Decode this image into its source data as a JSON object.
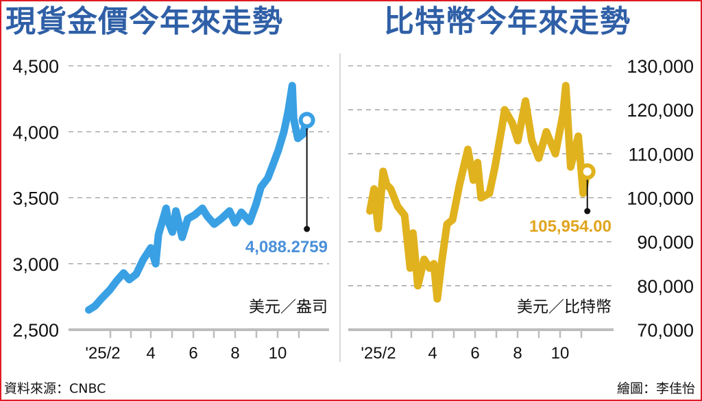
{
  "titles": {
    "gold": "現貨金價今年來走勢",
    "bitcoin": "比特幣今年來走勢"
  },
  "footer": {
    "source": "資料來源：CNBC",
    "credit": "繪圖：李佳怡"
  },
  "colors": {
    "title": "#2f5fa6",
    "gold_line": "#3aa0e4",
    "gold_label": "#4a90d9",
    "btc_line": "#e0b21e",
    "btc_label": "#e0a41e",
    "frame": "#e01b24",
    "grid": "#999999",
    "axis": "#bbbbbb"
  },
  "chart_data": [
    {
      "type": "line",
      "title": "現貨金價今年來走勢",
      "unit_label": "美元／盎司",
      "ylabel": "美元／盎司",
      "xlabel": "",
      "ylim": [
        2500,
        4500
      ],
      "yticks": [
        2500,
        3000,
        3500,
        4000,
        4500
      ],
      "ytick_labels": [
        "2,500",
        "3,000",
        "3,500",
        "4,000",
        "4,500"
      ],
      "y_axis_side": "left",
      "grid": true,
      "xtick_labels": [
        "'25/2",
        "4",
        "6",
        "8",
        "10"
      ],
      "latest_value_label": "4,088.2759",
      "latest_value": 4088.2759,
      "series": [
        {
          "name": "現貨金價",
          "x": [
            "2025-01-01",
            "2025-01-10",
            "2025-01-20",
            "2025-01-31",
            "2025-02-10",
            "2025-02-20",
            "2025-02-28",
            "2025-03-10",
            "2025-03-20",
            "2025-03-31",
            "2025-04-07",
            "2025-04-11",
            "2025-04-17",
            "2025-04-22",
            "2025-04-25",
            "2025-05-01",
            "2025-05-06",
            "2025-05-15",
            "2025-05-23",
            "2025-06-02",
            "2025-06-13",
            "2025-06-20",
            "2025-06-30",
            "2025-07-10",
            "2025-07-22",
            "2025-07-30",
            "2025-08-08",
            "2025-08-20",
            "2025-08-29",
            "2025-09-05",
            "2025-09-15",
            "2025-09-23",
            "2025-09-30",
            "2025-10-08",
            "2025-10-14",
            "2025-10-20",
            "2025-10-22",
            "2025-10-28",
            "2025-11-04",
            "2025-11-10"
          ],
          "values": [
            2650,
            2680,
            2740,
            2800,
            2870,
            2930,
            2880,
            2920,
            3030,
            3120,
            3000,
            3220,
            3330,
            3420,
            3320,
            3240,
            3400,
            3200,
            3340,
            3370,
            3420,
            3360,
            3300,
            3340,
            3400,
            3310,
            3390,
            3320,
            3450,
            3580,
            3650,
            3760,
            3860,
            4000,
            4150,
            4350,
            4100,
            3950,
            3980,
            4088.28
          ]
        }
      ]
    },
    {
      "type": "line",
      "title": "比特幣今年來走勢",
      "unit_label": "美元／比特幣",
      "ylabel": "美元／比特幣",
      "xlabel": "",
      "ylim": [
        70000,
        130000
      ],
      "yticks": [
        70000,
        80000,
        90000,
        100000,
        110000,
        120000,
        130000
      ],
      "ytick_labels": [
        "70,000",
        "80,000",
        "90,000",
        "100,000",
        "110,000",
        "120,000",
        "130,000"
      ],
      "y_axis_side": "right",
      "grid": true,
      "xtick_labels": [
        "'25/2",
        "4",
        "6",
        "8",
        "10"
      ],
      "latest_value_label": "105,954.00",
      "latest_value": 105954.0,
      "series": [
        {
          "name": "比特幣",
          "x": [
            "2025-01-01",
            "2025-01-07",
            "2025-01-13",
            "2025-01-20",
            "2025-01-25",
            "2025-01-31",
            "2025-02-10",
            "2025-02-20",
            "2025-02-28",
            "2025-03-04",
            "2025-03-11",
            "2025-03-20",
            "2025-03-28",
            "2025-04-03",
            "2025-04-08",
            "2025-04-14",
            "2025-04-22",
            "2025-04-30",
            "2025-05-10",
            "2025-05-22",
            "2025-05-30",
            "2025-06-05",
            "2025-06-10",
            "2025-06-22",
            "2025-06-30",
            "2025-07-10",
            "2025-07-14",
            "2025-07-25",
            "2025-08-02",
            "2025-08-13",
            "2025-08-22",
            "2025-09-01",
            "2025-09-12",
            "2025-09-25",
            "2025-10-06",
            "2025-10-10",
            "2025-10-17",
            "2025-10-28",
            "2025-11-04",
            "2025-11-10"
          ],
          "values": [
            97000,
            102000,
            93000,
            106000,
            103000,
            102000,
            98000,
            96000,
            84000,
            92000,
            80000,
            86000,
            84000,
            85000,
            77000,
            85000,
            94000,
            95000,
            103000,
            111000,
            104000,
            108000,
            100000,
            101000,
            107000,
            116000,
            120000,
            117000,
            113000,
            122000,
            113000,
            109000,
            115000,
            110000,
            119000,
            125500,
            107000,
            114000,
            101000,
            105954
          ]
        }
      ]
    }
  ]
}
